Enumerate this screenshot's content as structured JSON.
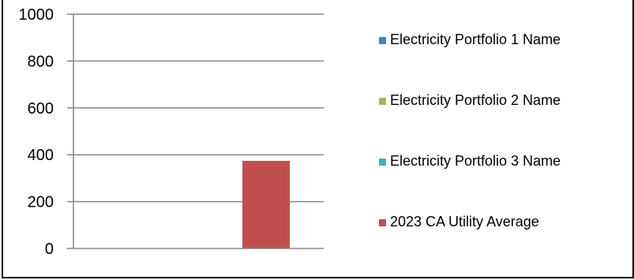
{
  "chart_data": {
    "type": "bar",
    "title": "",
    "xlabel": "",
    "ylabel": "",
    "ylim": [
      0,
      1000
    ],
    "yticks": [
      "0",
      "200",
      "400",
      "600",
      "800",
      "1000"
    ],
    "legend_position": "right",
    "grid": true,
    "series": [
      {
        "name": "Electricity Portfolio 1 Name",
        "value": 0,
        "color": "#4f81bd"
      },
      {
        "name": "Electricity Portfolio 2 Name",
        "value": 0,
        "color": "#9bbb59"
      },
      {
        "name": "Electricity Portfolio 3 Name",
        "value": 0,
        "color": "#4bacc6"
      },
      {
        "name": "2023 CA Utility Average",
        "value": 374,
        "color": "#c0504d"
      }
    ]
  }
}
